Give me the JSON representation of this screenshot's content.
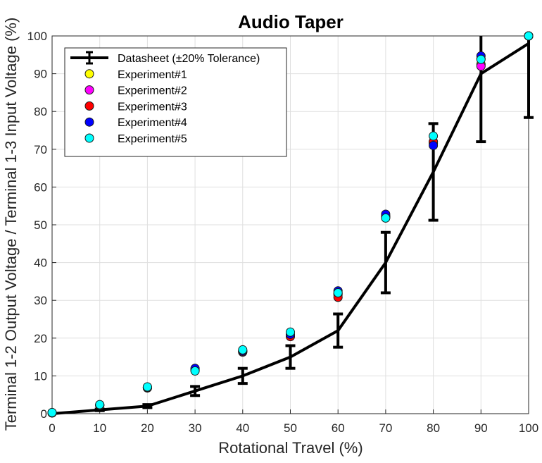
{
  "chart_data": {
    "type": "line",
    "title": "Audio Taper",
    "xlabel": "Rotational Travel (%)",
    "ylabel": "Terminal 1-2 Output Voltage / Terminal 1-3 Input Voltage (%)",
    "xlim": [
      0,
      100
    ],
    "ylim": [
      0,
      100
    ],
    "xticks": [
      "0",
      "10",
      "20",
      "30",
      "40",
      "50",
      "60",
      "70",
      "80",
      "90",
      "100"
    ],
    "yticks": [
      "0",
      "10",
      "20",
      "30",
      "40",
      "50",
      "60",
      "70",
      "80",
      "90",
      "100"
    ],
    "grid": true,
    "legend_position": "top-left",
    "datasheet": {
      "name": "Datasheet (±20% Tolerance)",
      "color": "#000000",
      "x": [
        0,
        10,
        20,
        30,
        40,
        50,
        60,
        70,
        80,
        90,
        100
      ],
      "y": [
        0,
        1,
        2,
        6,
        10,
        15,
        22,
        40,
        64,
        90,
        98
      ],
      "err_low": [
        0,
        0.2,
        0.4,
        1.2,
        2,
        3,
        4.4,
        8,
        12.8,
        18,
        19.6
      ],
      "err_high": [
        0,
        0.2,
        0.4,
        1.2,
        2,
        3,
        4.4,
        8,
        12.8,
        18,
        19.6
      ]
    },
    "series": [
      {
        "name": "Experiment#1",
        "color": "#ffff00",
        "x": [
          0,
          10,
          20,
          30,
          40,
          50,
          60,
          70,
          80,
          90,
          100
        ],
        "y": [
          0.2,
          2.2,
          6.9,
          11.6,
          16.5,
          20.8,
          31.5,
          52.0,
          71.5,
          92.5,
          100
        ]
      },
      {
        "name": "Experiment#2",
        "color": "#ff00ff",
        "x": [
          0,
          10,
          20,
          30,
          40,
          50,
          60,
          70,
          80,
          90,
          100
        ],
        "y": [
          0.2,
          2.2,
          6.8,
          11.5,
          16.3,
          20.5,
          31.8,
          52.2,
          72.0,
          92.0,
          100
        ]
      },
      {
        "name": "Experiment#3",
        "color": "#ff0000",
        "x": [
          0,
          10,
          20,
          30,
          40,
          50,
          60,
          70,
          80,
          90,
          100
        ],
        "y": [
          0.2,
          2.3,
          6.9,
          11.8,
          16.5,
          20.4,
          30.8,
          52.3,
          72.0,
          94.0,
          100
        ]
      },
      {
        "name": "Experiment#4",
        "color": "#0000ff",
        "x": [
          0,
          10,
          20,
          30,
          40,
          50,
          60,
          70,
          80,
          90,
          100
        ],
        "y": [
          0.2,
          2.3,
          7.0,
          12.0,
          16.6,
          21.0,
          32.5,
          52.8,
          71.0,
          94.7,
          100
        ]
      },
      {
        "name": "Experiment#5",
        "color": "#00ffff",
        "x": [
          0,
          10,
          20,
          30,
          40,
          50,
          60,
          70,
          80,
          90,
          100
        ],
        "y": [
          0.3,
          2.4,
          7.1,
          11.3,
          16.9,
          21.6,
          32.0,
          51.8,
          73.5,
          93.8,
          100
        ]
      }
    ]
  }
}
